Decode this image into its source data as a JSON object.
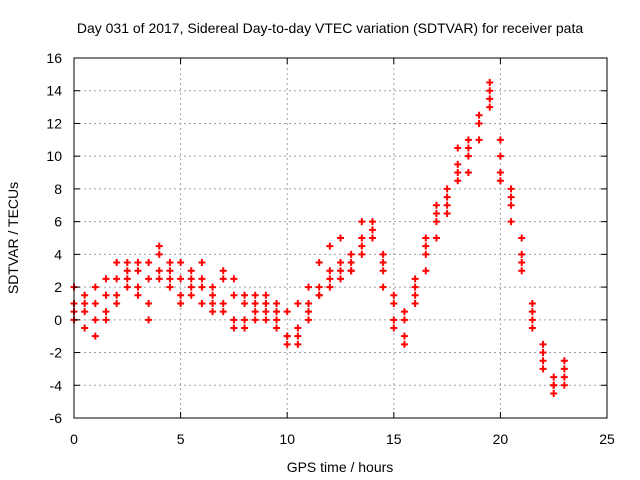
{
  "colors": {
    "series": "#ff0000",
    "grid": "#a0a0a0",
    "axis": "#000000",
    "background": "#ffffff"
  },
  "chart_data": {
    "type": "scatter",
    "title": "Day 031 of 2017, Sidereal Day-to-day VTEC variation (SDTVAR) for receiver pata",
    "xlabel": "GPS time / hours",
    "ylabel": "SDTVAR / TECUs",
    "xlim": [
      0,
      25
    ],
    "ylim": [
      -6,
      16
    ],
    "xticks": [
      0,
      5,
      10,
      15,
      20,
      25
    ],
    "yticks": [
      -6,
      -4,
      -2,
      0,
      2,
      4,
      6,
      8,
      10,
      12,
      14,
      16
    ],
    "grid": true,
    "marker": "+",
    "series": [
      {
        "name": "SDTVAR",
        "x": [
          0.0,
          0.5,
          1.0,
          1.5,
          2.0,
          2.5,
          3.0,
          3.5,
          4.0,
          4.5,
          5.0,
          5.5,
          6.0,
          6.5,
          7.0,
          7.5,
          8.0,
          8.5,
          9.0,
          9.5,
          10.0,
          10.5,
          11.0,
          11.5,
          12.0,
          12.5,
          13.0,
          13.5,
          14.0,
          14.5,
          15.0,
          15.5,
          16.0,
          16.5,
          17.0,
          17.5,
          18.0,
          18.5,
          19.0,
          19.5,
          20.0,
          20.5,
          21.0,
          21.5,
          22.0,
          22.5,
          23.0
        ],
        "y": [
          1.0,
          0.5,
          2.0,
          1.5,
          2.5,
          3.0,
          3.5,
          2.5,
          4.5,
          3.5,
          2.5,
          3.0,
          2.5,
          1.5,
          2.5,
          1.5,
          1.0,
          0.5,
          1.0,
          0.5,
          -1.0,
          -0.5,
          1.0,
          2.0,
          2.5,
          3.0,
          3.5,
          4.5,
          5.5,
          4.0,
          1.0,
          0.0,
          1.5,
          4.0,
          6.5,
          7.5,
          9.5,
          11.0,
          12.0,
          14.0,
          10.0,
          7.0,
          4.0,
          0.0,
          -2.0,
          -4.0,
          -3.0
        ]
      },
      {
        "name": "SDTVAR",
        "x": [
          0.0,
          0.5,
          1.0,
          1.5,
          2.0,
          2.5,
          3.0,
          3.5,
          4.0,
          4.5,
          5.0,
          5.5,
          6.0,
          6.5,
          7.0,
          7.5,
          8.0,
          8.5,
          9.0,
          9.5,
          10.0,
          10.5,
          11.0,
          11.5,
          12.0,
          12.5,
          13.0,
          13.5,
          14.0,
          14.5,
          15.0,
          15.5,
          16.0,
          16.5,
          17.0,
          17.5,
          18.0,
          18.5,
          19.0,
          19.5,
          20.0,
          20.5,
          21.0,
          21.5,
          22.0,
          22.5,
          23.0
        ],
        "y": [
          0.0,
          -0.5,
          1.0,
          0.0,
          1.5,
          2.5,
          2.0,
          1.0,
          3.0,
          2.0,
          1.5,
          2.0,
          1.0,
          0.5,
          1.0,
          0.0,
          -0.5,
          0.0,
          0.5,
          0.0,
          -1.5,
          -1.0,
          0.0,
          1.5,
          3.0,
          2.5,
          3.0,
          5.0,
          6.0,
          3.0,
          0.0,
          -1.0,
          1.0,
          3.0,
          5.0,
          7.0,
          8.5,
          10.0,
          11.0,
          14.5,
          11.0,
          8.0,
          5.0,
          1.0,
          -2.5,
          -4.5,
          -4.0
        ]
      },
      {
        "name": "SDTVAR",
        "x": [
          0.0,
          0.5,
          1.0,
          1.5,
          2.0,
          2.5,
          3.0,
          3.5,
          4.0,
          4.5,
          5.0,
          5.5,
          6.0,
          6.5,
          7.0,
          7.5,
          8.0,
          8.5,
          9.0,
          9.5,
          10.0,
          10.5,
          11.0,
          11.5,
          12.0,
          12.5,
          13.0,
          13.5,
          14.0,
          14.5,
          15.0,
          15.5,
          16.0,
          16.5,
          17.0,
          17.5,
          18.0,
          18.5,
          19.0,
          19.5,
          20.0,
          20.5,
          21.0,
          21.5,
          22.0,
          22.5,
          23.0
        ],
        "y": [
          2.0,
          1.5,
          0.0,
          2.5,
          3.5,
          2.0,
          3.0,
          3.5,
          4.0,
          2.5,
          3.5,
          2.5,
          2.0,
          1.0,
          3.0,
          2.5,
          1.5,
          1.0,
          1.5,
          1.0,
          0.5,
          1.0,
          2.0,
          3.5,
          4.5,
          5.0,
          4.0,
          4.0,
          5.0,
          3.5,
          1.5,
          -1.5,
          2.0,
          5.0,
          6.0,
          8.0,
          10.5,
          9.0,
          12.0,
          13.0,
          9.0,
          7.5,
          3.5,
          0.5,
          -1.5,
          -3.5,
          -2.5
        ]
      },
      {
        "name": "SDTVAR",
        "x": [
          0.0,
          0.5,
          1.0,
          1.5,
          2.0,
          2.5,
          3.0,
          3.5,
          4.0,
          4.5,
          5.0,
          5.5,
          6.0,
          6.5,
          7.0,
          7.5,
          8.0,
          8.5,
          9.0,
          9.5,
          10.0,
          10.5,
          11.0,
          11.5,
          12.0,
          12.5,
          13.0,
          13.5,
          14.0,
          14.5,
          15.0,
          15.5,
          16.0,
          16.5,
          17.0,
          17.5,
          18.0,
          18.5,
          19.0,
          19.5,
          20.0,
          20.5,
          21.0,
          21.5,
          22.0,
          22.5,
          23.0
        ],
        "y": [
          0.5,
          1.0,
          -1.0,
          0.5,
          1.0,
          3.5,
          1.5,
          0.0,
          2.5,
          3.0,
          1.0,
          1.5,
          3.5,
          2.0,
          0.5,
          -0.5,
          0.0,
          1.5,
          0.0,
          -0.5,
          -1.0,
          -1.5,
          0.5,
          1.5,
          2.0,
          3.5,
          3.0,
          6.0,
          5.0,
          2.0,
          -0.5,
          0.5,
          2.5,
          4.5,
          7.0,
          6.5,
          9.0,
          10.5,
          12.5,
          13.5,
          8.5,
          6.0,
          3.0,
          -0.5,
          -3.0,
          -4.0,
          -3.5
        ]
      }
    ]
  }
}
